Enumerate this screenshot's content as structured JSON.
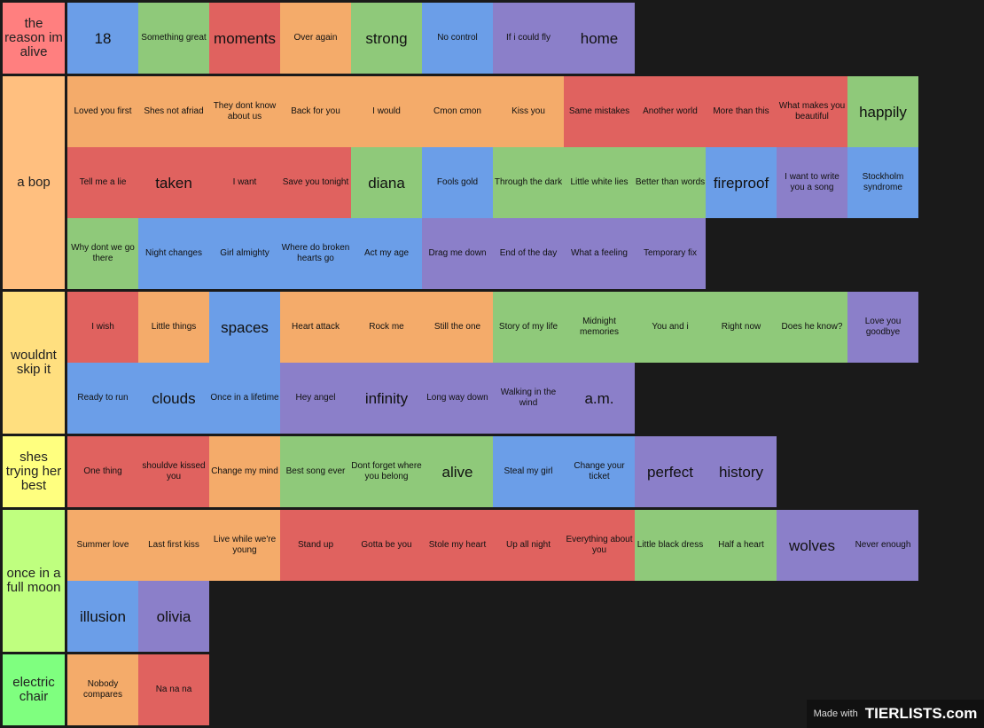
{
  "tiers": [
    {
      "label": "the reason im alive",
      "color": "#ff7f7f",
      "items": [
        {
          "text": "18",
          "color": "#6b9ee8"
        },
        {
          "text": "Something great",
          "color": "#8fc97a"
        },
        {
          "text": "moments",
          "color": "#e0625f"
        },
        {
          "text": "Over again",
          "color": "#f4ab6a"
        },
        {
          "text": "strong",
          "color": "#8fc97a"
        },
        {
          "text": "No control",
          "color": "#6b9ee8"
        },
        {
          "text": "If i could fly",
          "color": "#8b7fc9"
        },
        {
          "text": "home",
          "color": "#8b7fc9"
        }
      ]
    },
    {
      "label": "a bop",
      "color": "#ffbf7f",
      "items": [
        {
          "text": "Loved you first",
          "color": "#f4ab6a"
        },
        {
          "text": "Shes not afriad",
          "color": "#f4ab6a"
        },
        {
          "text": "They dont know about us",
          "color": "#f4ab6a"
        },
        {
          "text": "Back for you",
          "color": "#f4ab6a"
        },
        {
          "text": "I would",
          "color": "#f4ab6a"
        },
        {
          "text": "Cmon cmon",
          "color": "#f4ab6a"
        },
        {
          "text": "Kiss you",
          "color": "#f4ab6a"
        },
        {
          "text": "Same mistakes",
          "color": "#e0625f"
        },
        {
          "text": "Another world",
          "color": "#e0625f"
        },
        {
          "text": "More than this",
          "color": "#e0625f"
        },
        {
          "text": "What makes you beautiful",
          "color": "#e0625f"
        },
        {
          "text": "happily",
          "color": "#8fc97a"
        },
        {
          "text": "Tell me a lie",
          "color": "#e0625f"
        },
        {
          "text": "taken",
          "color": "#e0625f"
        },
        {
          "text": "I want",
          "color": "#e0625f"
        },
        {
          "text": "Save you tonight",
          "color": "#e0625f"
        },
        {
          "text": "diana",
          "color": "#8fc97a"
        },
        {
          "text": "Fools gold",
          "color": "#6b9ee8"
        },
        {
          "text": "Through the dark",
          "color": "#8fc97a"
        },
        {
          "text": "Little white lies",
          "color": "#8fc97a"
        },
        {
          "text": "Better than words",
          "color": "#8fc97a"
        },
        {
          "text": "fireproof",
          "color": "#6b9ee8"
        },
        {
          "text": "I want to write you a song",
          "color": "#8b7fc9"
        },
        {
          "text": "Stockholm syndrome",
          "color": "#6b9ee8"
        },
        {
          "text": "Why dont we go there",
          "color": "#8fc97a"
        },
        {
          "text": "Night changes",
          "color": "#6b9ee8"
        },
        {
          "text": "Girl almighty",
          "color": "#6b9ee8"
        },
        {
          "text": "Where do broken hearts go",
          "color": "#6b9ee8"
        },
        {
          "text": "Act my age",
          "color": "#6b9ee8"
        },
        {
          "text": "Drag me down",
          "color": "#8b7fc9"
        },
        {
          "text": "End of the day",
          "color": "#8b7fc9"
        },
        {
          "text": "What a feeling",
          "color": "#8b7fc9"
        },
        {
          "text": "Temporary fix",
          "color": "#8b7fc9"
        }
      ]
    },
    {
      "label": "wouldnt skip it",
      "color": "#ffdf7f",
      "items": [
        {
          "text": "I wish",
          "color": "#e0625f"
        },
        {
          "text": "Little things",
          "color": "#f4ab6a"
        },
        {
          "text": "spaces",
          "color": "#6b9ee8"
        },
        {
          "text": "Heart attack",
          "color": "#f4ab6a"
        },
        {
          "text": "Rock me",
          "color": "#f4ab6a"
        },
        {
          "text": "Still the one",
          "color": "#f4ab6a"
        },
        {
          "text": "Story of my life",
          "color": "#8fc97a"
        },
        {
          "text": "Midnight memories",
          "color": "#8fc97a"
        },
        {
          "text": "You and i",
          "color": "#8fc97a"
        },
        {
          "text": "Right now",
          "color": "#8fc97a"
        },
        {
          "text": "Does he know?",
          "color": "#8fc97a"
        },
        {
          "text": "Love you goodbye",
          "color": "#8b7fc9"
        },
        {
          "text": "Ready to run",
          "color": "#6b9ee8"
        },
        {
          "text": "clouds",
          "color": "#6b9ee8"
        },
        {
          "text": "Once in a lifetime",
          "color": "#6b9ee8"
        },
        {
          "text": "Hey angel",
          "color": "#8b7fc9"
        },
        {
          "text": "infinity",
          "color": "#8b7fc9"
        },
        {
          "text": "Long way down",
          "color": "#8b7fc9"
        },
        {
          "text": "Walking in the wind",
          "color": "#8b7fc9"
        },
        {
          "text": "a.m.",
          "color": "#8b7fc9"
        }
      ]
    },
    {
      "label": "shes trying her best",
      "color": "#ffff7f",
      "items": [
        {
          "text": "One thing",
          "color": "#e0625f"
        },
        {
          "text": "shouldve kissed you",
          "color": "#e0625f"
        },
        {
          "text": "Change my mind",
          "color": "#f4ab6a"
        },
        {
          "text": "Best song ever",
          "color": "#8fc97a"
        },
        {
          "text": "Dont forget where you belong",
          "color": "#8fc97a"
        },
        {
          "text": "alive",
          "color": "#8fc97a"
        },
        {
          "text": "Steal my girl",
          "color": "#6b9ee8"
        },
        {
          "text": "Change your ticket",
          "color": "#6b9ee8"
        },
        {
          "text": "perfect",
          "color": "#8b7fc9"
        },
        {
          "text": "history",
          "color": "#8b7fc9"
        }
      ]
    },
    {
      "label": "once in a full moon",
      "color": "#bfff7f",
      "items": [
        {
          "text": "Summer love",
          "color": "#f4ab6a"
        },
        {
          "text": "Last first kiss",
          "color": "#f4ab6a"
        },
        {
          "text": "Live while we're young",
          "color": "#f4ab6a"
        },
        {
          "text": "Stand up",
          "color": "#e0625f"
        },
        {
          "text": "Gotta be you",
          "color": "#e0625f"
        },
        {
          "text": "Stole my heart",
          "color": "#e0625f"
        },
        {
          "text": "Up all night",
          "color": "#e0625f"
        },
        {
          "text": "Everything about you",
          "color": "#e0625f"
        },
        {
          "text": "Little black dress",
          "color": "#8fc97a"
        },
        {
          "text": "Half a heart",
          "color": "#8fc97a"
        },
        {
          "text": "wolves",
          "color": "#8b7fc9"
        },
        {
          "text": "Never enough",
          "color": "#8b7fc9"
        },
        {
          "text": "illusion",
          "color": "#6b9ee8"
        },
        {
          "text": "olivia",
          "color": "#8b7fc9"
        }
      ]
    },
    {
      "label": "electric chair",
      "color": "#7fff7f",
      "items": [
        {
          "text": "Nobody compares",
          "color": "#f4ab6a"
        },
        {
          "text": "Na na na",
          "color": "#e0625f"
        }
      ]
    }
  ],
  "watermark": {
    "prefix": "Made with",
    "brand": "TIERLISTS.com"
  }
}
